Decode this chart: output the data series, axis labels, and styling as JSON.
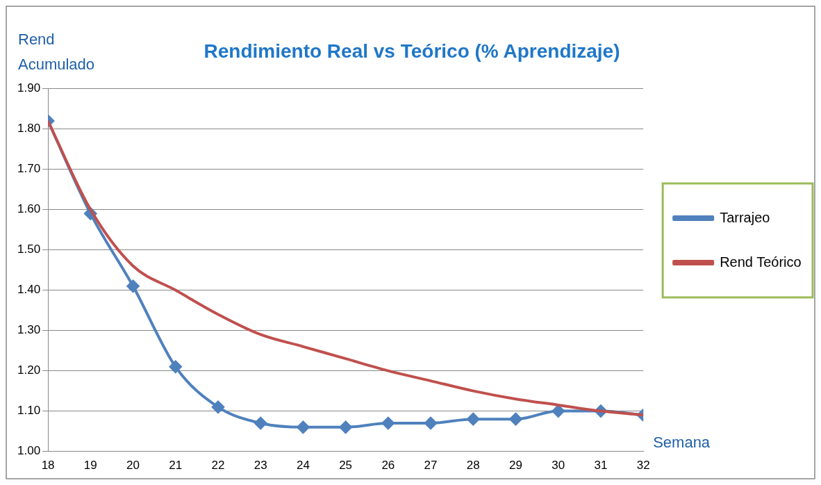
{
  "chart_data": {
    "type": "line",
    "title": "Rendimiento Real vs Teórico (% Aprendizaje)",
    "ylabel": "Rend Acumulado",
    "xlabel": "Semana",
    "x": [
      18,
      19,
      20,
      21,
      22,
      23,
      24,
      25,
      26,
      27,
      28,
      29,
      30,
      31,
      32
    ],
    "series": [
      {
        "name": "Tarrajeo",
        "color": "#4f81bd",
        "marker": "diamond",
        "values": [
          1.82,
          1.59,
          1.41,
          1.21,
          1.11,
          1.07,
          1.06,
          1.06,
          1.07,
          1.07,
          1.08,
          1.08,
          1.1,
          1.1,
          1.09
        ]
      },
      {
        "name": "Rend Teórico",
        "color": "#c0504d",
        "marker": "none",
        "values": [
          1.82,
          1.6,
          1.46,
          1.4,
          1.34,
          1.29,
          1.26,
          1.23,
          1.2,
          1.175,
          1.15,
          1.13,
          1.115,
          1.1,
          1.09
        ]
      }
    ],
    "xlim": [
      18,
      32
    ],
    "xticks": [
      18,
      19,
      20,
      21,
      22,
      23,
      24,
      25,
      26,
      27,
      28,
      29,
      30,
      31,
      32
    ],
    "ylim": [
      1,
      1.9
    ],
    "yticks": [
      {
        "value": 1,
        "label": "1.00"
      },
      {
        "value": 1.1,
        "label": "1.10"
      },
      {
        "value": 1.2,
        "label": "1.20"
      },
      {
        "value": 1.3,
        "label": "1.30"
      },
      {
        "value": 1.4,
        "label": "1.40"
      },
      {
        "value": 1.5,
        "label": "1.50"
      },
      {
        "value": 1.6,
        "label": "1.60"
      },
      {
        "value": 1.7,
        "label": "1.70"
      },
      {
        "value": 1.8,
        "label": "1.80"
      },
      {
        "value": 1.9,
        "label": "1.90"
      }
    ],
    "grid": "y",
    "legend": "right"
  }
}
